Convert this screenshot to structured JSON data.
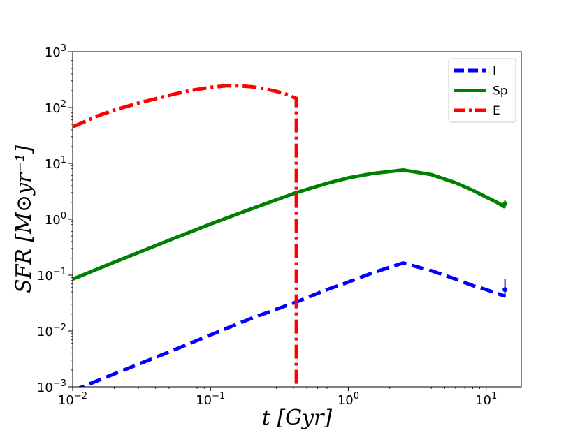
{
  "chart_data": {
    "type": "line",
    "xlabel": "t [Gyr]",
    "ylabel": "SFR [M⊙yr⁻¹]",
    "xscale": "log",
    "yscale": "log",
    "xlim": [
      0.01,
      18
    ],
    "ylim": [
      0.001,
      1000
    ],
    "grid": false,
    "legend_position": "top-right",
    "xticks": [
      {
        "value": 0.01,
        "base": "10",
        "exp": "−2"
      },
      {
        "value": 0.1,
        "base": "10",
        "exp": "−1"
      },
      {
        "value": 1,
        "base": "10",
        "exp": "0"
      },
      {
        "value": 10,
        "base": "10",
        "exp": "1"
      }
    ],
    "yticks": [
      {
        "value": 0.001,
        "base": "10",
        "exp": "−3"
      },
      {
        "value": 0.01,
        "base": "10",
        "exp": "−2"
      },
      {
        "value": 0.1,
        "base": "10",
        "exp": "−1"
      },
      {
        "value": 1,
        "base": "10",
        "exp": "0"
      },
      {
        "value": 10,
        "base": "10",
        "exp": "1"
      },
      {
        "value": 100,
        "base": "10",
        "exp": "2"
      },
      {
        "value": 1000,
        "base": "10",
        "exp": "3"
      }
    ],
    "series": [
      {
        "name": "I",
        "color": "#0000ff",
        "style": "dashed",
        "x": [
          0.01,
          0.02,
          0.05,
          0.1,
          0.2,
          0.42,
          0.7,
          1.0,
          1.5,
          2.5,
          4.0,
          6.0,
          8.0,
          10.0,
          13.7
        ],
        "y": [
          0.00085,
          0.0017,
          0.0042,
          0.0085,
          0.017,
          0.033,
          0.055,
          0.075,
          0.11,
          0.165,
          0.12,
          0.085,
          0.065,
          0.055,
          0.042
        ],
        "errorbar": {
          "x": 13.7,
          "y": 0.055,
          "low": 0.04,
          "high": 0.085
        }
      },
      {
        "name": "Sp",
        "color": "#008000",
        "style": "solid",
        "x": [
          0.01,
          0.02,
          0.05,
          0.1,
          0.2,
          0.42,
          0.7,
          1.0,
          1.5,
          2.5,
          4.0,
          6.0,
          8.0,
          10.0,
          12.0,
          13.7
        ],
        "y": [
          0.085,
          0.17,
          0.42,
          0.82,
          1.55,
          3.0,
          4.4,
          5.5,
          6.6,
          7.6,
          6.3,
          4.5,
          3.3,
          2.5,
          2.0,
          1.65
        ],
        "errorbar": {
          "x": 13.7,
          "y": 1.9,
          "low": 1.6,
          "high": 2.2
        }
      },
      {
        "name": "E",
        "color": "#ff0000",
        "style": "dashdot",
        "x": [
          0.01,
          0.015,
          0.02,
          0.03,
          0.05,
          0.07,
          0.1,
          0.13,
          0.16,
          0.2,
          0.25,
          0.3,
          0.35,
          0.42,
          0.42,
          0.42
        ],
        "y": [
          45,
          70,
          90,
          120,
          165,
          200,
          230,
          245,
          245,
          235,
          215,
          195,
          175,
          145,
          3.0,
          0.001
        ]
      }
    ]
  }
}
